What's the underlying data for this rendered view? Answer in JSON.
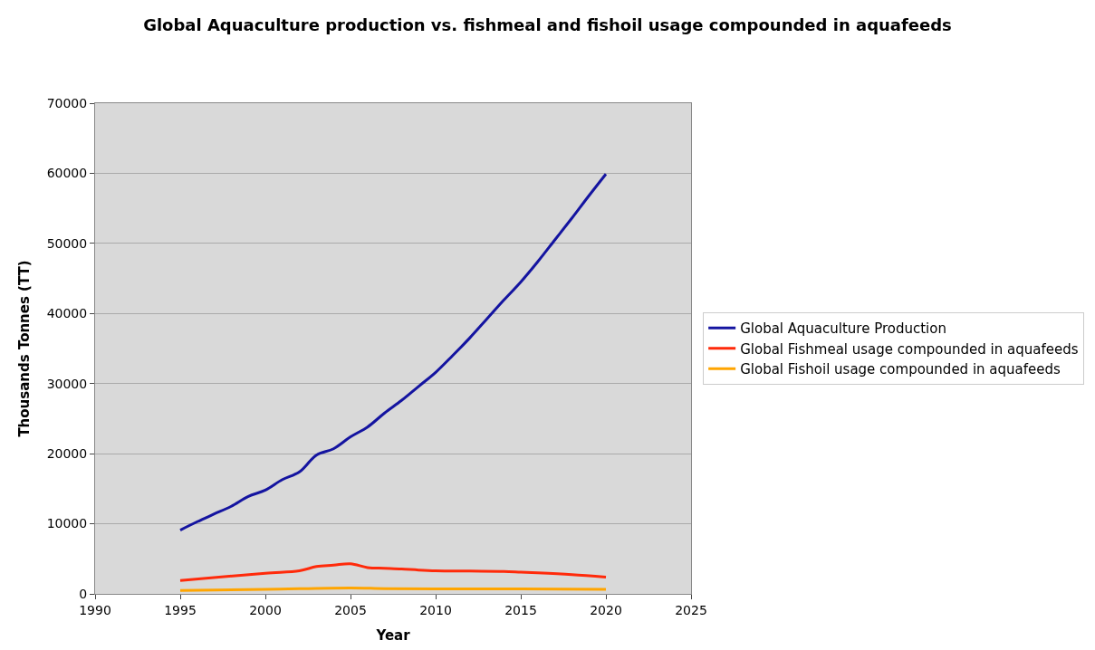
{
  "chart_data": {
    "type": "line",
    "title": "Global Aquaculture production vs. fishmeal and fishoil usage compounded in aquafeeds",
    "xlabel": "Year",
    "ylabel": "Thousands Tonnes (TT)",
    "series": [
      {
        "name": "Global Aquaculture Production",
        "color": "#1414a0",
        "x": [
          1995,
          1996,
          1997,
          1998,
          1999,
          2000,
          2001,
          2002,
          2003,
          2004,
          2005,
          2006,
          2007,
          2008,
          2009,
          2010,
          2011,
          2012,
          2013,
          2014,
          2015,
          2016,
          2017,
          2018,
          2019,
          2020
        ],
        "values": [
          9100,
          10300,
          11400,
          12500,
          13900,
          14800,
          16300,
          17400,
          19800,
          20700,
          22400,
          23800,
          25800,
          27600,
          29600,
          31600,
          34000,
          36500,
          39200,
          41900,
          44500,
          47400,
          50500,
          53600,
          56800,
          59900
        ]
      },
      {
        "name": "Global Fishmeal usage compounded in aquafeeds",
        "color": "#ff2a0a",
        "x": [
          1995,
          2000,
          2002,
          2003,
          2004,
          2005,
          2006,
          2007,
          2008,
          2009,
          2010,
          2012,
          2014,
          2015,
          2016,
          2018,
          2020
        ],
        "values": [
          1900,
          2950,
          3300,
          3900,
          4100,
          4300,
          3750,
          3650,
          3550,
          3400,
          3300,
          3250,
          3200,
          3100,
          3000,
          2750,
          2400
        ]
      },
      {
        "name": "Global Fishoil usage compounded in aquafeeds",
        "color": "#ffa500",
        "x": [
          1995,
          2000,
          2005,
          2007,
          2010,
          2015,
          2020
        ],
        "values": [
          500,
          650,
          850,
          750,
          700,
          700,
          650
        ]
      }
    ],
    "xlim": [
      1990,
      2025
    ],
    "xticks": [
      1990,
      1995,
      2000,
      2005,
      2010,
      2015,
      2020,
      2025
    ],
    "ylim": [
      0,
      70000
    ],
    "yticks": [
      0,
      10000,
      20000,
      30000,
      40000,
      50000,
      60000,
      70000
    ],
    "grid": "y",
    "legend": "right",
    "marker": "none",
    "line_style": "solid"
  }
}
